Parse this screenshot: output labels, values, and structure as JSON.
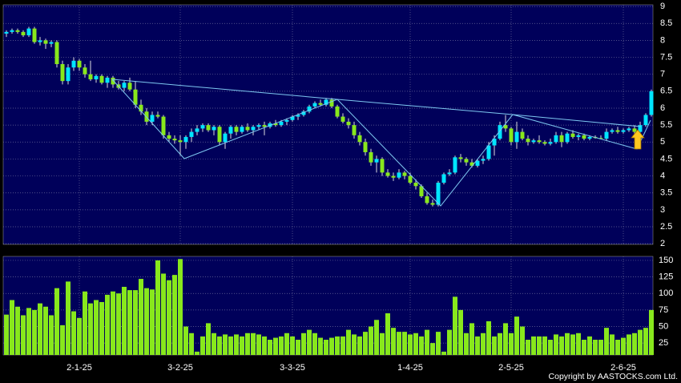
{
  "chart_data": {
    "type": "candlestick",
    "categories": [
      null,
      null,
      null,
      null,
      null,
      null,
      null,
      null,
      null,
      null,
      null,
      null,
      null,
      "2-1-25",
      null,
      null,
      null,
      null,
      null,
      null,
      null,
      null,
      null,
      null,
      null,
      null,
      null,
      null,
      null,
      null,
      null,
      "3-2-25",
      null,
      null,
      null,
      null,
      null,
      null,
      null,
      null,
      null,
      null,
      null,
      null,
      null,
      null,
      null,
      null,
      null,
      null,
      null,
      "3-3-25",
      null,
      null,
      null,
      null,
      null,
      null,
      null,
      null,
      null,
      null,
      null,
      null,
      null,
      null,
      null,
      null,
      null,
      null,
      null,
      null,
      "1-4-25",
      null,
      null,
      null,
      null,
      null,
      null,
      null,
      null,
      null,
      null,
      null,
      null,
      null,
      null,
      null,
      null,
      null,
      "2-5-25",
      null,
      null,
      null,
      null,
      null,
      null,
      null,
      null,
      null,
      null,
      null,
      null,
      null,
      null,
      null,
      null,
      null,
      null,
      null,
      "2-6-25",
      null,
      null,
      null,
      null,
      null
    ],
    "open": [
      8.2,
      8.25,
      8.3,
      8.25,
      8.15,
      8.35,
      7.95,
      8.0,
      7.9,
      7.95,
      7.3,
      6.8,
      7.2,
      7.4,
      7.2,
      7.0,
      6.85,
      6.95,
      6.75,
      6.9,
      6.7,
      6.6,
      6.75,
      6.55,
      6.1,
      5.9,
      5.6,
      5.8,
      5.75,
      5.2,
      5.1,
      5.05,
      5.0,
      5.15,
      5.3,
      5.4,
      5.5,
      5.35,
      5.45,
      5.0,
      5.25,
      5.45,
      5.3,
      5.45,
      5.35,
      5.45,
      5.5,
      5.45,
      5.55,
      5.5,
      5.6,
      5.65,
      5.75,
      5.8,
      5.9,
      6.05,
      6.15,
      6.1,
      6.25,
      6.05,
      5.75,
      5.6,
      5.5,
      5.2,
      5.0,
      4.7,
      4.4,
      4.5,
      4.1,
      4.0,
      3.95,
      4.1,
      4.0,
      3.8,
      3.7,
      3.4,
      3.2,
      3.15,
      3.8,
      4.05,
      4.1,
      4.55,
      4.5,
      4.4,
      4.3,
      4.45,
      4.5,
      4.9,
      5.1,
      5.5,
      5.4,
      5.0,
      5.3,
      5.1,
      5.0,
      5.05,
      5.0,
      4.95,
      5.0,
      5.2,
      5.0,
      5.25,
      5.15,
      5.2,
      5.1,
      5.15,
      5.12,
      5.1,
      5.3,
      5.35,
      5.3,
      5.35,
      5.4,
      5.3,
      5.5,
      5.8
    ],
    "high": [
      8.3,
      8.35,
      8.35,
      8.3,
      8.4,
      8.4,
      8.1,
      8.05,
      8.0,
      8.0,
      7.4,
      7.3,
      7.5,
      7.45,
      7.3,
      7.4,
      7.0,
      7.0,
      6.95,
      6.95,
      6.8,
      6.8,
      6.9,
      6.8,
      6.25,
      6.0,
      5.9,
      5.9,
      5.8,
      5.3,
      5.2,
      5.2,
      5.2,
      5.4,
      5.5,
      5.55,
      5.55,
      5.5,
      5.5,
      5.3,
      5.5,
      5.5,
      5.5,
      5.55,
      5.5,
      5.55,
      5.6,
      5.6,
      5.65,
      5.65,
      5.7,
      5.8,
      5.85,
      5.95,
      6.1,
      6.2,
      6.25,
      6.3,
      6.3,
      6.1,
      5.85,
      5.7,
      5.6,
      5.3,
      5.1,
      4.8,
      4.6,
      4.55,
      4.2,
      4.1,
      4.2,
      4.15,
      4.1,
      3.9,
      3.75,
      3.5,
      3.3,
      3.85,
      4.1,
      4.2,
      4.6,
      4.65,
      4.55,
      4.5,
      4.5,
      4.6,
      5.0,
      5.2,
      5.6,
      5.8,
      5.45,
      5.6,
      5.4,
      5.2,
      5.1,
      5.2,
      5.05,
      5.1,
      5.3,
      5.3,
      5.3,
      5.35,
      5.25,
      5.25,
      5.2,
      5.2,
      5.2,
      5.4,
      5.4,
      5.45,
      5.4,
      5.45,
      5.5,
      5.6,
      5.85,
      6.55
    ],
    "low": [
      8.1,
      8.2,
      8.2,
      8.1,
      8.1,
      7.9,
      7.85,
      7.75,
      7.8,
      7.2,
      6.7,
      6.7,
      7.1,
      7.1,
      6.9,
      6.8,
      6.75,
      6.7,
      6.6,
      6.6,
      6.55,
      6.5,
      6.5,
      6.0,
      5.8,
      5.5,
      5.5,
      5.7,
      5.1,
      5.0,
      4.95,
      4.6,
      4.8,
      5.0,
      5.2,
      5.3,
      5.3,
      5.2,
      4.9,
      4.8,
      5.1,
      5.2,
      5.25,
      5.3,
      5.2,
      5.35,
      5.2,
      5.4,
      5.45,
      5.45,
      5.5,
      5.6,
      5.65,
      5.75,
      5.85,
      6.0,
      6.05,
      6.05,
      6.0,
      5.7,
      5.55,
      5.4,
      5.1,
      4.9,
      4.6,
      4.3,
      4.1,
      4.0,
      3.95,
      3.85,
      3.9,
      3.9,
      3.75,
      3.6,
      3.35,
      3.15,
      3.1,
      3.1,
      3.75,
      4.0,
      4.05,
      4.4,
      4.3,
      4.25,
      4.25,
      4.35,
      4.45,
      4.6,
      5.05,
      5.3,
      4.9,
      4.8,
      5.05,
      4.9,
      4.95,
      4.95,
      4.9,
      4.9,
      4.95,
      4.85,
      4.95,
      5.1,
      5.05,
      5.05,
      5.05,
      5.1,
      5.08,
      5.05,
      5.25,
      5.25,
      5.25,
      5.3,
      5.2,
      5.25,
      5.45,
      5.75
    ],
    "close": [
      8.25,
      8.3,
      8.25,
      8.15,
      8.35,
      7.95,
      8.0,
      7.9,
      7.95,
      7.3,
      6.8,
      7.2,
      7.4,
      7.2,
      7.0,
      6.85,
      6.95,
      6.75,
      6.9,
      6.7,
      6.6,
      6.75,
      6.55,
      6.1,
      5.9,
      5.6,
      5.8,
      5.75,
      5.2,
      5.1,
      5.05,
      5.0,
      5.15,
      5.3,
      5.4,
      5.5,
      5.35,
      5.45,
      5.0,
      5.25,
      5.45,
      5.3,
      5.45,
      5.35,
      5.45,
      5.5,
      5.45,
      5.55,
      5.5,
      5.6,
      5.65,
      5.75,
      5.8,
      5.9,
      6.05,
      6.15,
      6.1,
      6.25,
      6.05,
      5.75,
      5.6,
      5.5,
      5.2,
      5.0,
      4.7,
      4.4,
      4.5,
      4.1,
      4.0,
      3.95,
      4.1,
      4.0,
      3.8,
      3.7,
      3.4,
      3.2,
      3.15,
      3.8,
      4.05,
      4.1,
      4.55,
      4.5,
      4.4,
      4.3,
      4.45,
      4.5,
      4.9,
      5.1,
      5.5,
      5.4,
      5.0,
      5.3,
      5.1,
      5.0,
      5.05,
      5.0,
      4.95,
      5.0,
      5.2,
      5.0,
      5.25,
      5.15,
      5.2,
      5.1,
      5.15,
      5.12,
      5.1,
      5.3,
      5.35,
      5.3,
      5.35,
      5.4,
      5.3,
      5.5,
      5.8,
      6.5
    ],
    "volume": [
      68,
      90,
      80,
      67,
      78,
      75,
      85,
      80,
      67,
      108,
      52,
      118,
      73,
      63,
      103,
      85,
      90,
      87,
      98,
      103,
      100,
      110,
      105,
      105,
      122,
      108,
      106,
      150,
      130,
      120,
      128,
      152,
      50,
      40,
      12,
      35,
      55,
      40,
      35,
      38,
      35,
      38,
      35,
      40,
      40,
      38,
      35,
      30,
      33,
      35,
      40,
      35,
      30,
      40,
      45,
      40,
      33,
      30,
      33,
      35,
      35,
      45,
      38,
      35,
      42,
      50,
      60,
      40,
      70,
      48,
      42,
      42,
      38,
      40,
      35,
      45,
      25,
      42,
      12,
      45,
      95,
      75,
      40,
      55,
      35,
      40,
      58,
      35,
      40,
      55,
      40,
      65,
      50,
      30,
      35,
      35,
      35,
      30,
      38,
      35,
      40,
      38,
      40,
      30,
      35,
      30,
      30,
      48,
      38,
      30,
      33,
      38,
      40,
      45,
      48,
      75
    ],
    "ylim": [
      1.98,
      9.05
    ],
    "yticks": [
      2,
      2.5,
      3,
      3.5,
      4,
      4.5,
      5,
      5.5,
      6,
      6.5,
      7,
      7.5,
      8,
      8.5,
      9
    ],
    "volume_ylim": [
      7,
      156
    ],
    "volume_yticks": [
      25,
      50,
      75,
      100,
      125,
      150
    ],
    "up_color": "#00e5ff",
    "down_color": "#88e81c",
    "volume_color": "#88e81c",
    "grid": true
  },
  "footer": "Copyright by AASTOCKS.com Ltd."
}
